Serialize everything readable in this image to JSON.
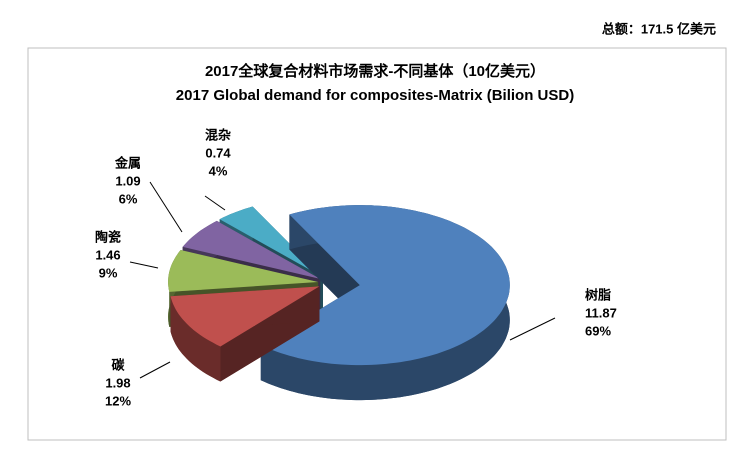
{
  "chart_data": {
    "type": "pie3d",
    "total_label": "总额：171.5 亿美元",
    "title": "2017全球复合材料市场需求-不同基体（10亿美元）",
    "subtitle": "2017 Global demand for composites-Matrix (Bilion USD)",
    "categories": [
      "树脂",
      "碳",
      "陶瓷",
      "金属",
      "混杂"
    ],
    "values": [
      11.87,
      1.98,
      1.46,
      1.09,
      0.74
    ],
    "percent_labels": [
      "69%",
      "12%",
      "9%",
      "6%",
      "4%"
    ],
    "colors": [
      "#4f81bd",
      "#c0504d",
      "#9bbb59",
      "#8064a2",
      "#4bacc6"
    ]
  }
}
